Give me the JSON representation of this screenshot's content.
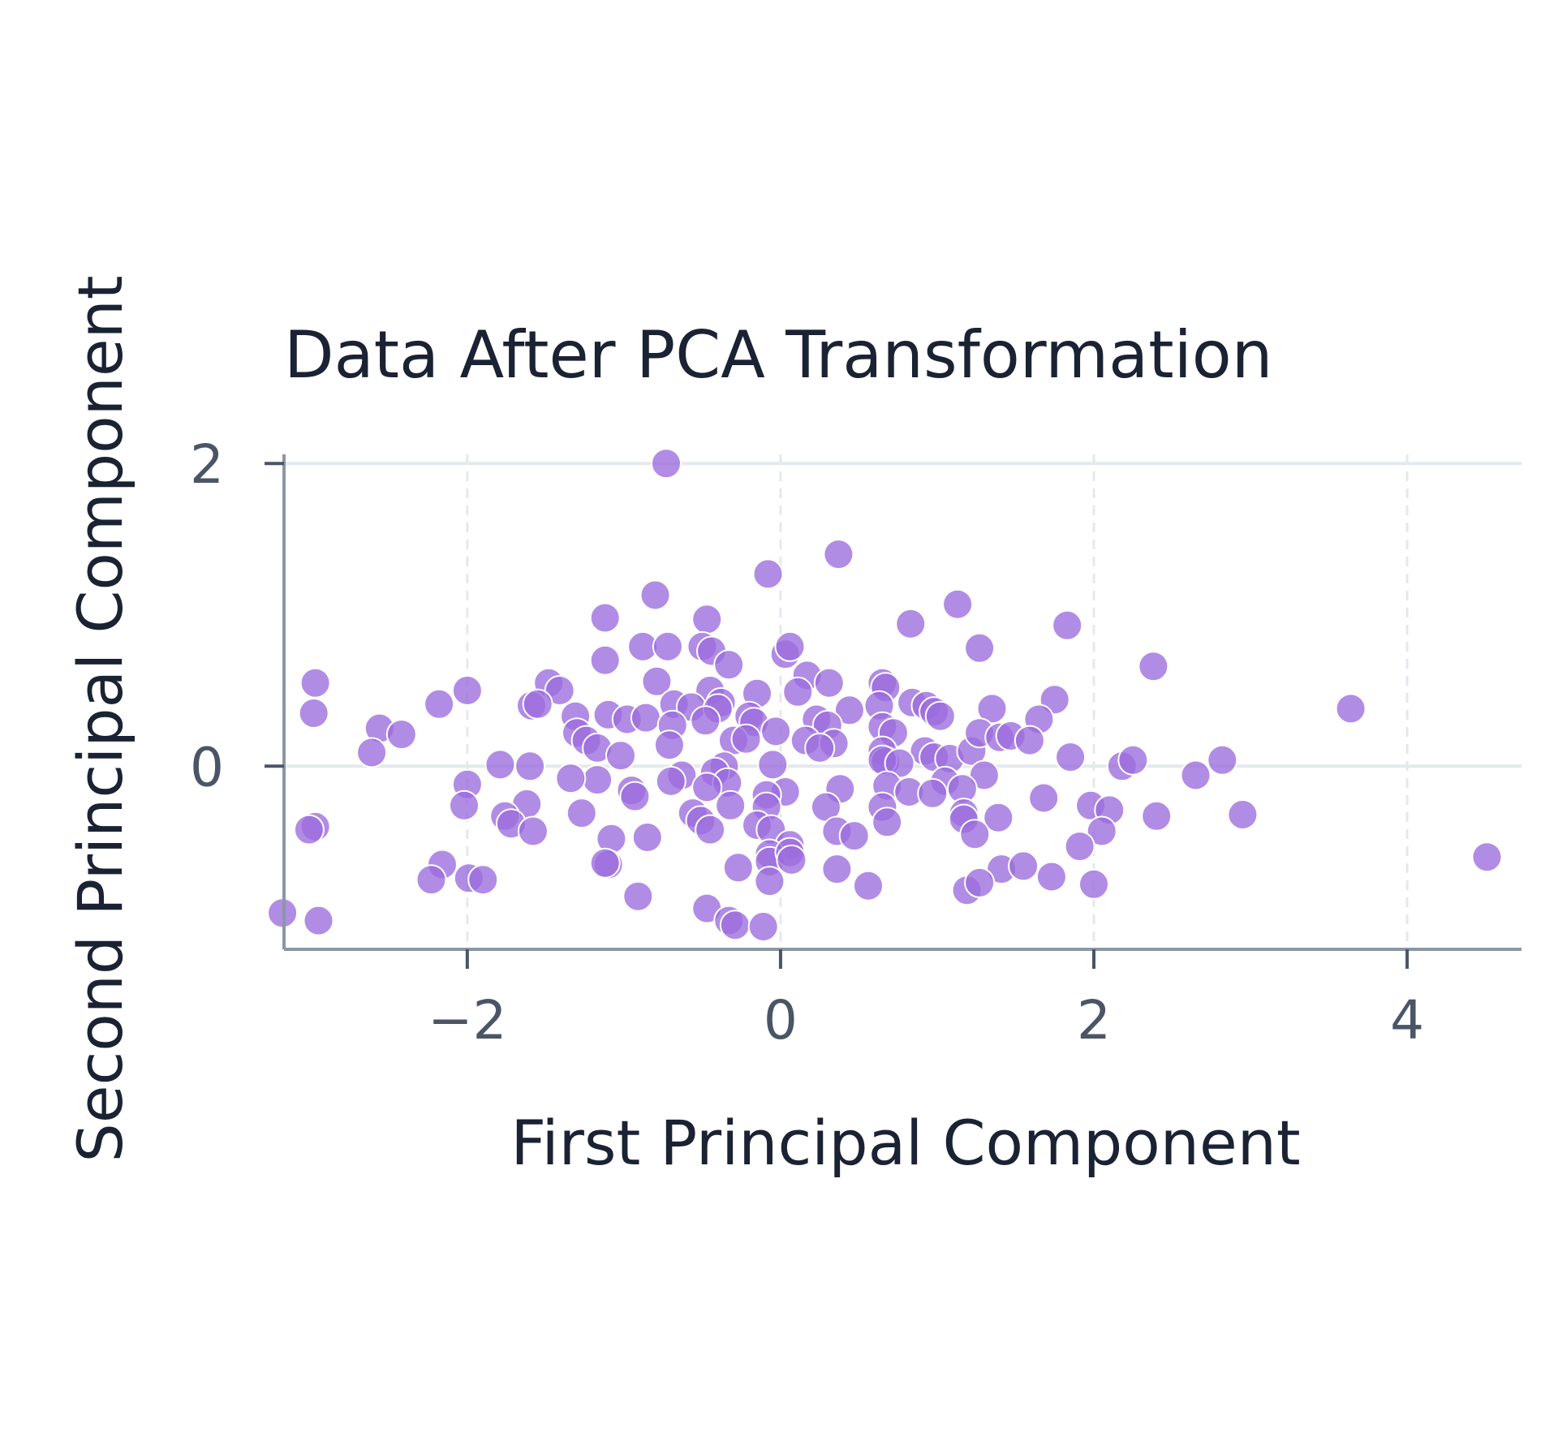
{
  "chart_data": {
    "type": "scatter",
    "title": "Data After PCA Transformation",
    "xlabel": "First Principal Component",
    "ylabel": "Second Principal Component",
    "xlim": [
      -3.17,
      4.73
    ],
    "ylim": [
      -1.21,
      2.06
    ],
    "xticks": [
      -2,
      0,
      2,
      4
    ],
    "xtick_labels": [
      "−2",
      "0",
      "2",
      "4"
    ],
    "yticks": [
      0,
      2
    ],
    "ytick_labels": [
      "0",
      "2"
    ],
    "grid": true,
    "legend": "none",
    "marker_color": "#9b6bde",
    "marker_edge_color": "#ffffff",
    "series": [
      {
        "points": [
          [
            -0.73,
            2.0
          ],
          [
            0.37,
            1.4
          ],
          [
            -0.08,
            1.27
          ],
          [
            1.13,
            1.07
          ],
          [
            -0.8,
            1.13
          ],
          [
            -1.12,
            0.98
          ],
          [
            -0.47,
            0.97
          ],
          [
            0.83,
            0.94
          ],
          [
            1.83,
            0.93
          ],
          [
            -0.88,
            0.79
          ],
          [
            -0.72,
            0.79
          ],
          [
            -0.5,
            0.79
          ],
          [
            -0.44,
            0.76
          ],
          [
            -0.33,
            0.67
          ],
          [
            -1.12,
            0.7
          ],
          [
            0.03,
            0.74
          ],
          [
            0.06,
            0.79
          ],
          [
            1.27,
            0.78
          ],
          [
            2.38,
            0.66
          ],
          [
            0.17,
            0.6
          ],
          [
            0.31,
            0.55
          ],
          [
            -0.79,
            0.56
          ],
          [
            -1.48,
            0.55
          ],
          [
            -2.97,
            0.55
          ],
          [
            -2.0,
            0.5
          ],
          [
            -1.41,
            0.5
          ],
          [
            0.65,
            0.55
          ],
          [
            0.67,
            0.52
          ],
          [
            -0.45,
            0.5
          ],
          [
            -0.15,
            0.48
          ],
          [
            0.11,
            0.49
          ],
          [
            1.75,
            0.44
          ],
          [
            -2.18,
            0.41
          ],
          [
            -1.59,
            0.4
          ],
          [
            -1.55,
            0.41
          ],
          [
            -0.68,
            0.41
          ],
          [
            -0.57,
            0.39
          ],
          [
            -0.38,
            0.42
          ],
          [
            -0.4,
            0.38
          ],
          [
            0.44,
            0.37
          ],
          [
            0.63,
            0.4
          ],
          [
            0.84,
            0.42
          ],
          [
            0.93,
            0.4
          ],
          [
            0.98,
            0.36
          ],
          [
            1.02,
            0.33
          ],
          [
            1.35,
            0.38
          ],
          [
            1.65,
            0.31
          ],
          [
            3.64,
            0.38
          ],
          [
            -2.98,
            0.35
          ],
          [
            -1.31,
            0.33
          ],
          [
            -1.1,
            0.34
          ],
          [
            -0.98,
            0.31
          ],
          [
            -0.86,
            0.32
          ],
          [
            -0.69,
            0.27
          ],
          [
            -0.48,
            0.3
          ],
          [
            -0.2,
            0.33
          ],
          [
            -0.17,
            0.29
          ],
          [
            0.23,
            0.31
          ],
          [
            0.3,
            0.27
          ],
          [
            0.65,
            0.26
          ],
          [
            0.72,
            0.22
          ],
          [
            -2.56,
            0.25
          ],
          [
            -2.42,
            0.21
          ],
          [
            -1.3,
            0.22
          ],
          [
            -1.24,
            0.17
          ],
          [
            -1.17,
            0.12
          ],
          [
            -0.71,
            0.14
          ],
          [
            -0.3,
            0.17
          ],
          [
            -0.22,
            0.18
          ],
          [
            -0.03,
            0.23
          ],
          [
            0.16,
            0.17
          ],
          [
            0.34,
            0.15
          ],
          [
            0.25,
            0.12
          ],
          [
            0.65,
            0.1
          ],
          [
            0.67,
            0.03
          ],
          [
            0.92,
            0.1
          ],
          [
            0.98,
            0.06
          ],
          [
            1.08,
            0.05
          ],
          [
            1.22,
            0.1
          ],
          [
            1.27,
            0.22
          ],
          [
            1.4,
            0.19
          ],
          [
            1.47,
            0.2
          ],
          [
            1.59,
            0.17
          ],
          [
            1.85,
            0.06
          ],
          [
            2.18,
            0.0
          ],
          [
            2.25,
            0.04
          ],
          [
            2.82,
            0.04
          ],
          [
            -2.61,
            0.09
          ],
          [
            -1.02,
            0.07
          ],
          [
            -0.05,
            0.01
          ],
          [
            0.65,
            0.04
          ],
          [
            0.76,
            0.02
          ],
          [
            -0.36,
            0.0
          ],
          [
            -0.42,
            -0.04
          ],
          [
            -0.63,
            -0.06
          ],
          [
            -0.7,
            -0.1
          ],
          [
            -1.17,
            -0.09
          ],
          [
            -1.34,
            -0.08
          ],
          [
            -1.6,
            0.0
          ],
          [
            -1.79,
            0.01
          ],
          [
            -2.0,
            -0.12
          ],
          [
            2.65,
            -0.06
          ],
          [
            1.3,
            -0.06
          ],
          [
            1.05,
            -0.1
          ],
          [
            1.16,
            -0.15
          ],
          [
            0.68,
            -0.13
          ],
          [
            0.82,
            -0.17
          ],
          [
            0.97,
            -0.18
          ],
          [
            0.38,
            -0.15
          ],
          [
            0.03,
            -0.17
          ],
          [
            -0.09,
            -0.19
          ],
          [
            -0.34,
            -0.11
          ],
          [
            -0.47,
            -0.14
          ],
          [
            -0.95,
            -0.16
          ],
          [
            -0.93,
            -0.2
          ],
          [
            -2.02,
            -0.26
          ],
          [
            -1.62,
            -0.25
          ],
          [
            -1.76,
            -0.33
          ],
          [
            -1.27,
            -0.31
          ],
          [
            -0.56,
            -0.31
          ],
          [
            -0.51,
            -0.36
          ],
          [
            -0.32,
            -0.26
          ],
          [
            -0.09,
            -0.27
          ],
          [
            0.29,
            -0.27
          ],
          [
            0.65,
            -0.27
          ],
          [
            1.17,
            -0.31
          ],
          [
            1.17,
            -0.35
          ],
          [
            1.39,
            -0.34
          ],
          [
            1.68,
            -0.21
          ],
          [
            1.98,
            -0.26
          ],
          [
            2.1,
            -0.29
          ],
          [
            2.4,
            -0.33
          ],
          [
            2.95,
            -0.32
          ],
          [
            -2.97,
            -0.4
          ],
          [
            -3.01,
            -0.42
          ],
          [
            -1.72,
            -0.38
          ],
          [
            -1.58,
            -0.43
          ],
          [
            -1.08,
            -0.48
          ],
          [
            -0.85,
            -0.47
          ],
          [
            -0.45,
            -0.42
          ],
          [
            -0.15,
            -0.39
          ],
          [
            -0.06,
            -0.42
          ],
          [
            0.06,
            -0.52
          ],
          [
            0.36,
            -0.43
          ],
          [
            0.47,
            -0.46
          ],
          [
            0.68,
            -0.37
          ],
          [
            1.24,
            -0.45
          ],
          [
            2.05,
            -0.43
          ],
          [
            1.91,
            -0.53
          ],
          [
            -0.07,
            -0.58
          ],
          [
            -0.07,
            -0.63
          ],
          [
            0.06,
            -0.57
          ],
          [
            0.07,
            -0.62
          ],
          [
            -0.27,
            -0.67
          ],
          [
            0.36,
            -0.68
          ],
          [
            1.41,
            -0.68
          ],
          [
            1.55,
            -0.66
          ],
          [
            1.73,
            -0.73
          ],
          [
            4.51,
            -0.6
          ],
          [
            -2.16,
            -0.65
          ],
          [
            -2.23,
            -0.75
          ],
          [
            -1.99,
            -0.74
          ],
          [
            -1.9,
            -0.75
          ],
          [
            -1.1,
            -0.65
          ],
          [
            -1.12,
            -0.64
          ],
          [
            -0.91,
            -0.86
          ],
          [
            -0.07,
            -0.76
          ],
          [
            0.56,
            -0.79
          ],
          [
            1.19,
            -0.82
          ],
          [
            1.27,
            -0.77
          ],
          [
            2.0,
            -0.78
          ],
          [
            -3.18,
            -0.97
          ],
          [
            -2.95,
            -1.02
          ],
          [
            -0.47,
            -0.94
          ],
          [
            -0.33,
            -1.02
          ],
          [
            -0.29,
            -1.05
          ],
          [
            -0.11,
            -1.06
          ]
        ]
      }
    ]
  }
}
